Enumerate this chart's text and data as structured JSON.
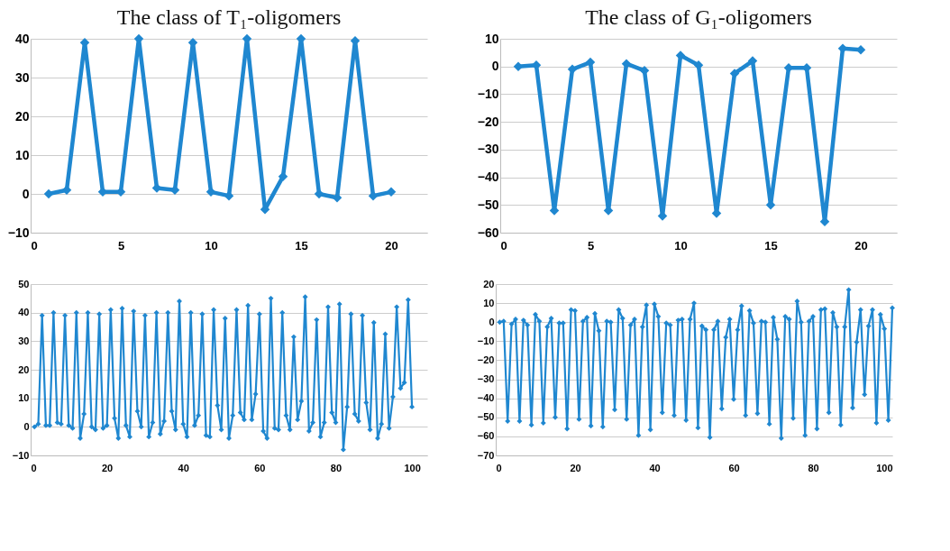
{
  "chart_data": [
    {
      "type": "line",
      "title": "The class of T₁-oligomers",
      "x": [
        1,
        2,
        3,
        4,
        5,
        6,
        7,
        8,
        9,
        10,
        11,
        12,
        13,
        14,
        15,
        16,
        17,
        18,
        19,
        20
      ],
      "series": [
        {
          "color": "#1f87d0",
          "values": [
            0,
            1,
            39,
            0.5,
            0.5,
            40,
            1.5,
            1,
            39,
            0.5,
            -0.5,
            40,
            -4,
            4.5,
            40,
            0,
            -1,
            39.5,
            -0.5,
            0.5
          ]
        }
      ],
      "xlim": [
        0,
        22
      ],
      "xticks": [
        0,
        5,
        10,
        15,
        20
      ],
      "ylim": [
        -10,
        40
      ],
      "yticks": [
        -10,
        0,
        10,
        20,
        30,
        40
      ],
      "grid": "y",
      "marker": "diamond",
      "line_style": "solid"
    },
    {
      "type": "line",
      "title": "The class of G₁-oligomers",
      "x": [
        1,
        2,
        3,
        4,
        5,
        6,
        7,
        8,
        9,
        10,
        11,
        12,
        13,
        14,
        15,
        16,
        17,
        18,
        19,
        20
      ],
      "series": [
        {
          "color": "#1f87d0",
          "values": [
            0,
            0.5,
            -52,
            -1,
            1.5,
            -52,
            1,
            -1.5,
            -54,
            4,
            0.5,
            -53,
            -2.5,
            2,
            -50,
            -0.5,
            -0.5,
            -56,
            6.5,
            6
          ]
        }
      ],
      "xlim": [
        0,
        22
      ],
      "xticks": [
        0,
        5,
        10,
        15,
        20
      ],
      "ylim": [
        -60,
        10
      ],
      "yticks": [
        -60,
        -50,
        -40,
        -30,
        -20,
        -10,
        0,
        10
      ],
      "grid": "y",
      "marker": "diamond",
      "line_style": "solid"
    },
    {
      "type": "line",
      "x": [
        1,
        2,
        3,
        4,
        5,
        6,
        7,
        8,
        9,
        10,
        11,
        12,
        13,
        14,
        15,
        16,
        17,
        18,
        19,
        20,
        21,
        22,
        23,
        24,
        25,
        26,
        27,
        28,
        29,
        30,
        31,
        32,
        33,
        34,
        35,
        36,
        37,
        38,
        39,
        40,
        41,
        42,
        43,
        44,
        45,
        46,
        47,
        48,
        49,
        50,
        51,
        52,
        53,
        54,
        55,
        56,
        57,
        58,
        59,
        60,
        61,
        62,
        63,
        64,
        65,
        66,
        67,
        68,
        69,
        70,
        71,
        72,
        73,
        74,
        75,
        76,
        77,
        78,
        79,
        80,
        81,
        82,
        83,
        84,
        85,
        86,
        87,
        88,
        89,
        90,
        91,
        92,
        93,
        94,
        95,
        96,
        97,
        98,
        99,
        100
      ],
      "series": [
        {
          "color": "#1f87d0",
          "values": [
            0,
            1,
            39,
            0.5,
            0.5,
            40,
            1.5,
            1,
            39,
            0.5,
            -0.5,
            40,
            -4,
            4.5,
            40,
            0,
            -1,
            39.5,
            -0.5,
            0.5,
            41,
            3,
            -4,
            41.5,
            0.5,
            -3.5,
            40.5,
            5.5,
            0,
            39,
            -3.5,
            1.5,
            40,
            -2.5,
            2,
            40,
            5.5,
            -1,
            44,
            1,
            -3.5,
            40,
            0.5,
            4,
            39.5,
            -3,
            -3.5,
            41,
            7.5,
            -1,
            38,
            -4,
            4,
            41,
            5,
            2.5,
            42.5,
            2.5,
            11.5,
            39.5,
            -1.5,
            -4,
            45,
            -0.5,
            -1,
            40,
            4,
            -1,
            31.5,
            2.5,
            9,
            45.5,
            -1.5,
            1.5,
            37.5,
            -3.5,
            1.5,
            42,
            5,
            1.5,
            43,
            -8,
            7,
            39.5,
            4.5,
            2,
            39,
            8.5,
            -1,
            36.5,
            -4,
            1,
            32.5,
            -0.5,
            10.5,
            42,
            13.5,
            15.5,
            44.5,
            7
          ]
        }
      ],
      "xlim": [
        0,
        104
      ],
      "xticks": [
        0,
        20,
        40,
        60,
        80,
        100
      ],
      "ylim": [
        -10,
        50
      ],
      "yticks": [
        -10,
        0,
        10,
        20,
        30,
        40,
        50
      ],
      "grid": "y",
      "marker": "diamond",
      "line_style": "solid"
    },
    {
      "type": "line",
      "x": [
        1,
        2,
        3,
        4,
        5,
        6,
        7,
        8,
        9,
        10,
        11,
        12,
        13,
        14,
        15,
        16,
        17,
        18,
        19,
        20,
        21,
        22,
        23,
        24,
        25,
        26,
        27,
        28,
        29,
        30,
        31,
        32,
        33,
        34,
        35,
        36,
        37,
        38,
        39,
        40,
        41,
        42,
        43,
        44,
        45,
        46,
        47,
        48,
        49,
        50,
        51,
        52,
        53,
        54,
        55,
        56,
        57,
        58,
        59,
        60,
        61,
        62,
        63,
        64,
        65,
        66,
        67,
        68,
        69,
        70,
        71,
        72,
        73,
        74,
        75,
        76,
        77,
        78,
        79,
        80,
        81,
        82,
        83,
        84,
        85,
        86,
        87,
        88,
        89,
        90,
        91,
        92,
        93,
        94,
        95,
        96,
        97,
        98,
        99,
        100
      ],
      "series": [
        {
          "color": "#1f87d0",
          "values": [
            0,
            0.5,
            -52,
            -1,
            1.5,
            -52,
            1,
            -1.5,
            -54,
            4,
            0.5,
            -53,
            -2.5,
            2,
            -50,
            -0.5,
            -0.5,
            -56,
            6.5,
            6,
            -51,
            0.5,
            2.5,
            -54.5,
            4.5,
            -4.5,
            -55,
            0.5,
            0,
            -46,
            6.5,
            2,
            -51,
            -1.5,
            1.5,
            -59.5,
            -2.5,
            9,
            -56.5,
            9.5,
            3,
            -47.5,
            -0.5,
            -1.5,
            -49,
            1,
            1.5,
            -51.5,
            1.5,
            10,
            -55.5,
            -2,
            -4,
            -60.5,
            -4,
            0.5,
            -45.5,
            -8,
            1.5,
            -40.5,
            -4,
            8.5,
            -49,
            6,
            -0.5,
            -48,
            0.5,
            0,
            -53.5,
            2.5,
            -9,
            -61,
            3,
            1.5,
            -50.5,
            11,
            0,
            -59.5,
            0.5,
            3,
            -56,
            6.5,
            7,
            -47.5,
            5,
            -2.5,
            -54,
            -2.5,
            17,
            -45,
            -10.5,
            6.5,
            -38,
            -2,
            6.5,
            -53,
            4,
            -3.5,
            -51.5,
            7.5
          ]
        }
      ],
      "xlim": [
        0,
        100
      ],
      "xticks": [
        0,
        20,
        40,
        60,
        80,
        100
      ],
      "ylim": [
        -70,
        20
      ],
      "yticks": [
        -70,
        -60,
        -50,
        -40,
        -30,
        -20,
        -10,
        0,
        10,
        20
      ],
      "grid": "y",
      "marker": "diamond",
      "line_style": "solid"
    }
  ]
}
